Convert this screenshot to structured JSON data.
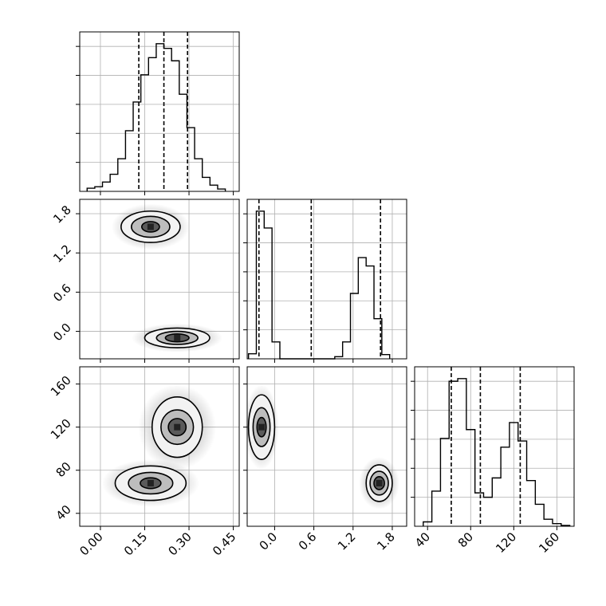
{
  "chart_data": {
    "type": "corner",
    "title": "",
    "parameters": [
      {
        "name": "",
        "range": [
          -0.07,
          0.47
        ],
        "ticks": [
          0.0,
          0.15,
          0.3,
          0.45
        ],
        "tick_labels": [
          "0.00",
          "0.15",
          "0.30",
          "0.45"
        ]
      },
      {
        "name": "",
        "range": [
          -0.42,
          2.02
        ],
        "ticks": [
          0.0,
          0.6,
          1.2,
          1.8
        ],
        "tick_labels": [
          "0.0",
          "0.6",
          "1.2",
          "1.8"
        ]
      },
      {
        "name": "",
        "range": [
          28,
          176
        ],
        "ticks": [
          40,
          80,
          120,
          160
        ],
        "tick_labels": [
          "40",
          "80",
          "120",
          "160"
        ]
      }
    ],
    "quantiles": [
      [
        0.13,
        0.215,
        0.295
      ],
      [
        -0.24,
        0.56,
        1.62
      ],
      [
        62,
        89,
        126
      ]
    ],
    "histograms": [
      {
        "edges_start": -0.045,
        "bin_width": 0.026,
        "counts": [
          4,
          6,
          12,
          22,
          42,
          78,
          115,
          150,
          172,
          190,
          184,
          168,
          125,
          82,
          42,
          18,
          8,
          3
        ]
      },
      {
        "edges_start": -0.4,
        "bin_width": 0.12,
        "counts": [
          12,
          350,
          310,
          40,
          0,
          0,
          0,
          0,
          0,
          0,
          0,
          5,
          40,
          155,
          240,
          220,
          95,
          10
        ]
      },
      {
        "edges_start": 36,
        "bin_width": 8,
        "counts": [
          5,
          40,
          100,
          165,
          168,
          110,
          38,
          33,
          55,
          90,
          118,
          97,
          52,
          25,
          8,
          3,
          1
        ]
      }
    ],
    "pairs": [
      {
        "x_param": 0,
        "y_param": 1,
        "clusters": [
          {
            "center": [
              0.17,
              1.6
            ],
            "spread": [
              0.06,
              0.16
            ],
            "levels": [
              [
                0.03,
                0.08
              ],
              [
                0.065,
                0.16
              ],
              [
                0.1,
                0.24
              ]
            ]
          },
          {
            "center": [
              0.26,
              -0.1
            ],
            "spread": [
              0.07,
              0.1
            ],
            "levels": [
              [
                0.04,
                0.06
              ],
              [
                0.07,
                0.1
              ],
              [
                0.11,
                0.15
              ]
            ]
          }
        ]
      },
      {
        "x_param": 0,
        "y_param": 2,
        "clusters": [
          {
            "center": [
              0.26,
              120
            ],
            "spread": [
              0.06,
              18
            ],
            "levels": [
              [
                0.03,
                8
              ],
              [
                0.055,
                16
              ],
              [
                0.085,
                28
              ]
            ]
          },
          {
            "center": [
              0.17,
              68
            ],
            "spread": [
              0.075,
              10
            ],
            "levels": [
              [
                0.035,
                5
              ],
              [
                0.075,
                10
              ],
              [
                0.12,
                16
              ]
            ]
          }
        ]
      },
      {
        "x_param": 1,
        "y_param": 2,
        "clusters": [
          {
            "center": [
              -0.2,
              120
            ],
            "spread": [
              0.12,
              18
            ],
            "levels": [
              [
                0.07,
                9
              ],
              [
                0.13,
                18
              ],
              [
                0.2,
                30
              ]
            ]
          },
          {
            "center": [
              1.6,
              68
            ],
            "spread": [
              0.14,
              11
            ],
            "levels": [
              [
                0.08,
                6
              ],
              [
                0.14,
                11
              ],
              [
                0.2,
                17
              ]
            ]
          }
        ]
      }
    ],
    "grid": true,
    "legend": "none"
  }
}
